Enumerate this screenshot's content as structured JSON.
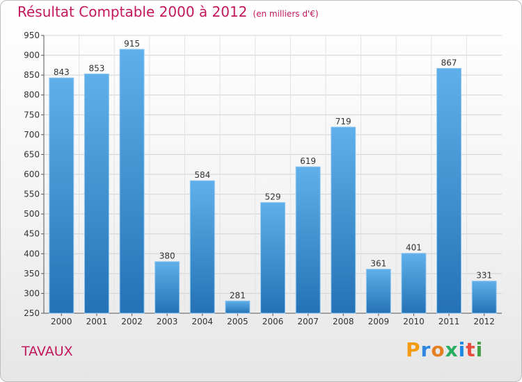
{
  "title": "Résultat Comptable 2000 à 2012",
  "subtitle": "(en milliers d'€)",
  "place": "TAVAUX",
  "logo": "Proxiti",
  "colors": {
    "bar": "#3b97dc",
    "title": "#c2185b"
  },
  "chart_data": {
    "type": "bar",
    "title": "Résultat Comptable 2000 à 2012",
    "subtitle": "(en milliers d'€)",
    "xlabel": "",
    "ylabel": "",
    "categories": [
      "2000",
      "2001",
      "2002",
      "2003",
      "2004",
      "2005",
      "2006",
      "2007",
      "2008",
      "2009",
      "2010",
      "2011",
      "2012"
    ],
    "values": [
      843,
      853,
      915,
      380,
      584,
      281,
      529,
      619,
      719,
      361,
      401,
      867,
      331
    ],
    "ylim": [
      250,
      950
    ],
    "yticks": [
      250,
      300,
      350,
      400,
      450,
      500,
      550,
      600,
      650,
      700,
      750,
      800,
      850,
      900,
      950
    ],
    "grid": true,
    "data_labels": true
  }
}
